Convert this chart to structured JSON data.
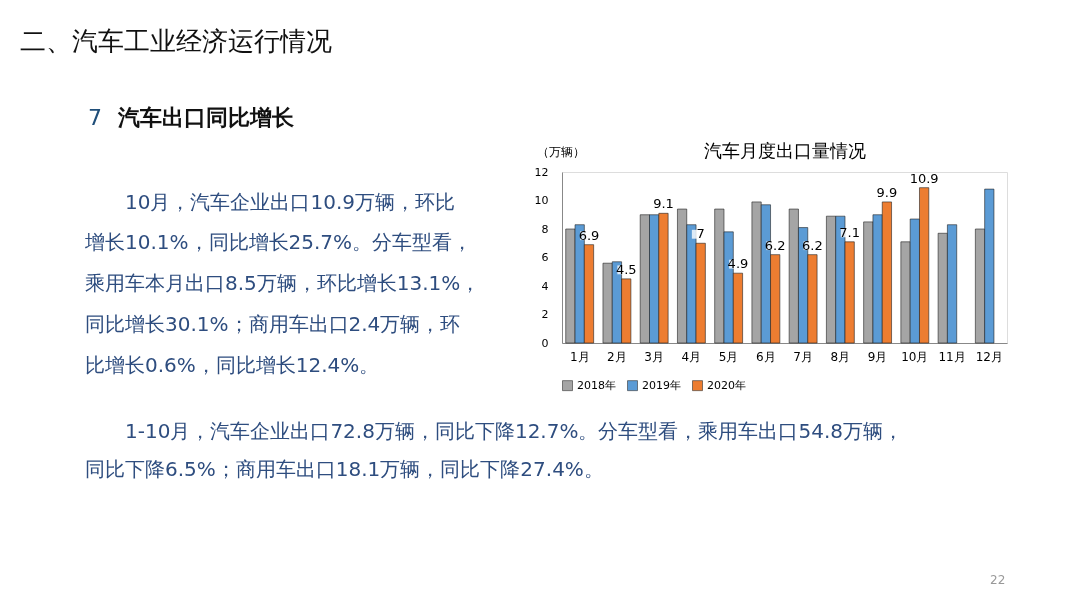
{
  "chart_data": {
    "type": "bar",
    "title": "汽车月度出口量情况",
    "ylabel": "（万辆）",
    "categories": [
      "1月",
      "2月",
      "3月",
      "4月",
      "5月",
      "6月",
      "7月",
      "8月",
      "9月",
      "10月",
      "11月",
      "12月"
    ],
    "series": [
      {
        "name": "2018年",
        "color": "#a5a5a5",
        "values": [
          8.0,
          5.6,
          9.0,
          9.4,
          9.4,
          9.9,
          9.4,
          8.9,
          8.5,
          7.1,
          7.7,
          8.0
        ]
      },
      {
        "name": "2019年",
        "color": "#5b9bd5",
        "values": [
          8.3,
          5.7,
          9.0,
          8.3,
          7.8,
          9.7,
          8.1,
          8.9,
          9.0,
          8.7,
          8.3,
          10.8
        ]
      },
      {
        "name": "2020年",
        "color": "#ed7d31",
        "values": [
          6.9,
          4.5,
          9.1,
          7,
          4.9,
          6.2,
          6.2,
          7.1,
          9.9,
          10.9,
          null,
          null
        ],
        "value_labels": [
          "6.9",
          "4.5",
          "9.1",
          "7",
          "4.9",
          "6.2",
          "6.2",
          "7.1",
          "9.9",
          "10.9",
          null,
          null
        ]
      }
    ],
    "ylim": [
      0,
      12
    ],
    "yticks": [
      0,
      2,
      4,
      6,
      8,
      10,
      12
    ],
    "grid": false,
    "legend": "bottom",
    "annotations": [
      "二、汽车工业经济运行情况",
      "7",
      "汽车出口同比增长",
      "10月，汽车企业出口10.9万辆，环比",
      "增长10.1%，同比增长25.7%。分车型看，",
      "乘用车本月出口8.5万辆，环比增长13.1%，",
      "同比增长30.1%；商用车出口2.4万辆，环",
      "比增长0.6%，同比增长12.4%。",
      "1-10月，汽车企业出口72.8万辆，同比下降12.7%。分车型看，乘用车出口54.8万辆，",
      "同比下降6.5%；商用车出口18.1万辆，同比下降27.4%。",
      "22"
    ]
  }
}
